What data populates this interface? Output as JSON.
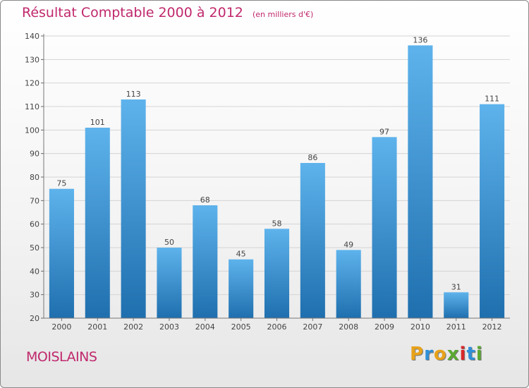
{
  "title": {
    "main": "Résultat Comptable 2000 à 2012",
    "unit": "(en milliers d'€)"
  },
  "town": "MOISLAINS",
  "brand": {
    "letters": [
      "P",
      "r",
      "o",
      "x",
      "i",
      "t",
      "i"
    ],
    "colors": [
      "#e8a21a",
      "#2f8fd8",
      "#e8a21a",
      "#5aa832",
      "#d8282a",
      "#2f8fd8",
      "#5aa832"
    ]
  },
  "colors": {
    "title": "#c0286c",
    "bar_top": "#5eb3ec",
    "bar_bottom": "#1f6fae"
  },
  "chart_data": {
    "type": "bar",
    "categories": [
      "2000",
      "2001",
      "2002",
      "2003",
      "2004",
      "2005",
      "2006",
      "2007",
      "2008",
      "2009",
      "2010",
      "2011",
      "2012"
    ],
    "values": [
      75,
      101,
      113,
      50,
      68,
      45,
      58,
      86,
      49,
      97,
      136,
      31,
      111
    ],
    "ylim": [
      20,
      140
    ],
    "yticks": [
      20,
      30,
      40,
      50,
      60,
      70,
      80,
      90,
      100,
      110,
      120,
      130,
      140
    ],
    "grid": true,
    "data_labels": true
  }
}
